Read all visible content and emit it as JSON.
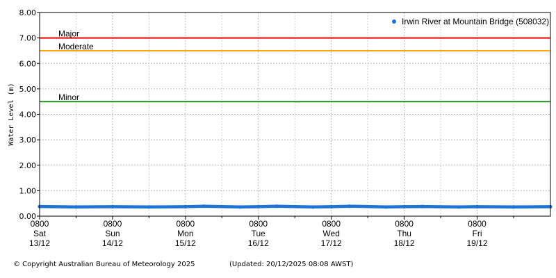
{
  "chart_data": {
    "type": "line",
    "ylabel": "Water Level (m)",
    "xlabel": "",
    "ylim": [
      0,
      8
    ],
    "yticks": [
      "0.00",
      "1.00",
      "2.00",
      "3.00",
      "4.00",
      "5.00",
      "6.00",
      "7.00",
      "8.00"
    ],
    "xlim": [
      "2025-12-13 08:00",
      "2025-12-20 08:08"
    ],
    "xticks": [
      {
        "x": "2025-12-13 08:00",
        "time": "0800",
        "day": "Sat",
        "date": "13/12"
      },
      {
        "x": "2025-12-14 08:00",
        "time": "0800",
        "day": "Sun",
        "date": "14/12"
      },
      {
        "x": "2025-12-15 08:00",
        "time": "0800",
        "day": "Mon",
        "date": "15/12"
      },
      {
        "x": "2025-12-16 08:00",
        "time": "0800",
        "day": "Tue",
        "date": "16/12"
      },
      {
        "x": "2025-12-17 08:00",
        "time": "0800",
        "day": "Wed",
        "date": "17/12"
      },
      {
        "x": "2025-12-18 08:00",
        "time": "0800",
        "day": "Thu",
        "date": "18/12"
      },
      {
        "x": "2025-12-19 08:00",
        "time": "0800",
        "day": "Fri",
        "date": "19/12"
      }
    ],
    "grid": true,
    "legend_position": "top-right",
    "thresholds": [
      {
        "name": "Major",
        "value": 7.0,
        "color": "#e00000"
      },
      {
        "name": "Moderate",
        "value": 6.5,
        "color": "#ffa500"
      },
      {
        "name": "Minor",
        "value": 4.5,
        "color": "#228b22"
      }
    ],
    "series": [
      {
        "name": "Irwin River at Mountain Bridge (508032)",
        "color": "#1e74d4",
        "points": [
          {
            "x": "2025-12-13 08:00",
            "y": 0.38
          },
          {
            "x": "2025-12-13 20:00",
            "y": 0.36
          },
          {
            "x": "2025-12-14 08:00",
            "y": 0.37
          },
          {
            "x": "2025-12-14 20:00",
            "y": 0.36
          },
          {
            "x": "2025-12-15 08:00",
            "y": 0.37
          },
          {
            "x": "2025-12-15 14:00",
            "y": 0.39
          },
          {
            "x": "2025-12-16 02:00",
            "y": 0.36
          },
          {
            "x": "2025-12-16 08:00",
            "y": 0.37
          },
          {
            "x": "2025-12-16 14:00",
            "y": 0.39
          },
          {
            "x": "2025-12-17 02:00",
            "y": 0.36
          },
          {
            "x": "2025-12-17 08:00",
            "y": 0.37
          },
          {
            "x": "2025-12-17 14:00",
            "y": 0.39
          },
          {
            "x": "2025-12-18 02:00",
            "y": 0.36
          },
          {
            "x": "2025-12-18 08:00",
            "y": 0.37
          },
          {
            "x": "2025-12-18 14:00",
            "y": 0.38
          },
          {
            "x": "2025-12-19 02:00",
            "y": 0.36
          },
          {
            "x": "2025-12-19 08:00",
            "y": 0.37
          },
          {
            "x": "2025-12-19 20:00",
            "y": 0.36
          },
          {
            "x": "2025-12-20 08:08",
            "y": 0.37
          }
        ]
      }
    ]
  },
  "footer": {
    "copyright": "© Copyright Australian Bureau of Meteorology 2025",
    "updated": "(Updated: 20/12/2025 08:08 AWST)"
  }
}
